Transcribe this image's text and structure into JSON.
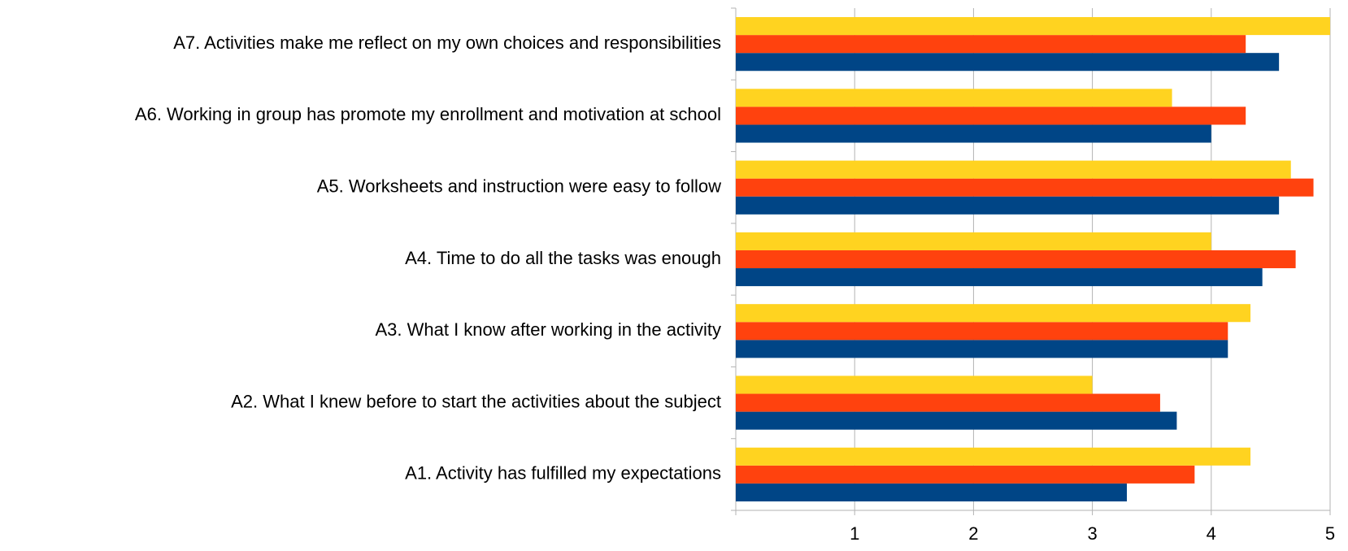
{
  "chart_data": {
    "type": "bar",
    "orientation": "horizontal",
    "categories": [
      "A1. Activity has fulfilled my expectations",
      "A2. What I knew before to start the activities about the subject",
      "A3. What I know after working in the activity",
      "A4. Time to do all the tasks was enough",
      "A5.  Worksheets and instruction were easy to follow",
      "A6.  Working in group has promote my enrollment and motivation at school",
      "A7. Activities make me reflect on my own choices and responsibilities"
    ],
    "series": [
      {
        "color": "#004586",
        "values": [
          3.29,
          3.71,
          4.14,
          4.43,
          4.57,
          4.0,
          4.57
        ]
      },
      {
        "color": "#ff420e",
        "values": [
          3.86,
          3.57,
          4.14,
          4.71,
          4.86,
          4.29,
          4.29
        ]
      },
      {
        "color": "#ffd320",
        "values": [
          4.33,
          3.0,
          4.33,
          4.0,
          4.67,
          3.67,
          5
        ]
      }
    ],
    "xlim": [
      0,
      5
    ],
    "xticks": [
      1,
      2,
      3,
      4,
      5
    ],
    "grid": true
  }
}
